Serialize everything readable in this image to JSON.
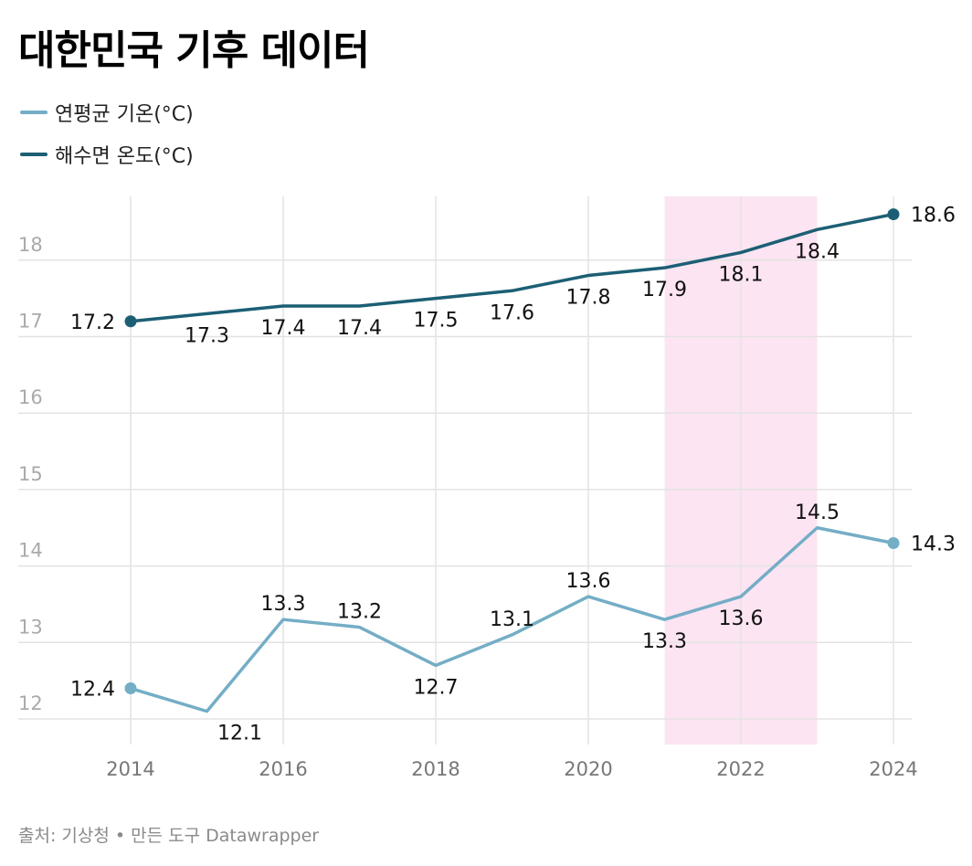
{
  "title": "대한민국 기후 데이터",
  "source": "출처: 기상청 • 만든 도구 Datawrapper",
  "colors": {
    "sea": "#1c5f74",
    "air": "#74adc6",
    "highlight": "#fce4f2",
    "grid": "#e3e3e3",
    "tick": "#aaaaaa",
    "xtick": "#777777",
    "label": "#111111"
  },
  "chart_data": {
    "type": "line",
    "x": [
      2014,
      2015,
      2016,
      2017,
      2018,
      2019,
      2020,
      2021,
      2022,
      2023,
      2024
    ],
    "x_ticks": [
      "2014",
      "2016",
      "2018",
      "2020",
      "2022",
      "2024"
    ],
    "y_ticks": [
      "12",
      "13",
      "14",
      "15",
      "16",
      "17",
      "18"
    ],
    "ylim": [
      11.8,
      18.8
    ],
    "grid": true,
    "legend_position": "top-left",
    "highlight_range": [
      2021,
      2023
    ],
    "series": [
      {
        "name": "연평균 기온(°C)",
        "key": "air",
        "values": [
          12.4,
          12.1,
          13.3,
          13.2,
          12.7,
          13.1,
          13.6,
          13.3,
          13.6,
          14.5,
          14.3
        ],
        "labels": [
          "12.4",
          "12.1",
          "13.3",
          "13.2",
          "12.7",
          "13.1",
          "13.6",
          "13.3",
          "13.6",
          "14.5",
          "14.3"
        ]
      },
      {
        "name": "해수면 온도(°C)",
        "key": "sea",
        "values": [
          17.2,
          17.3,
          17.4,
          17.4,
          17.5,
          17.6,
          17.8,
          17.9,
          18.1,
          18.4,
          18.6
        ],
        "labels": [
          "17.2",
          "17.3",
          "17.4",
          "17.4",
          "17.5",
          "17.6",
          "17.8",
          "17.9",
          "18.1",
          "18.4",
          "18.6"
        ]
      }
    ]
  }
}
